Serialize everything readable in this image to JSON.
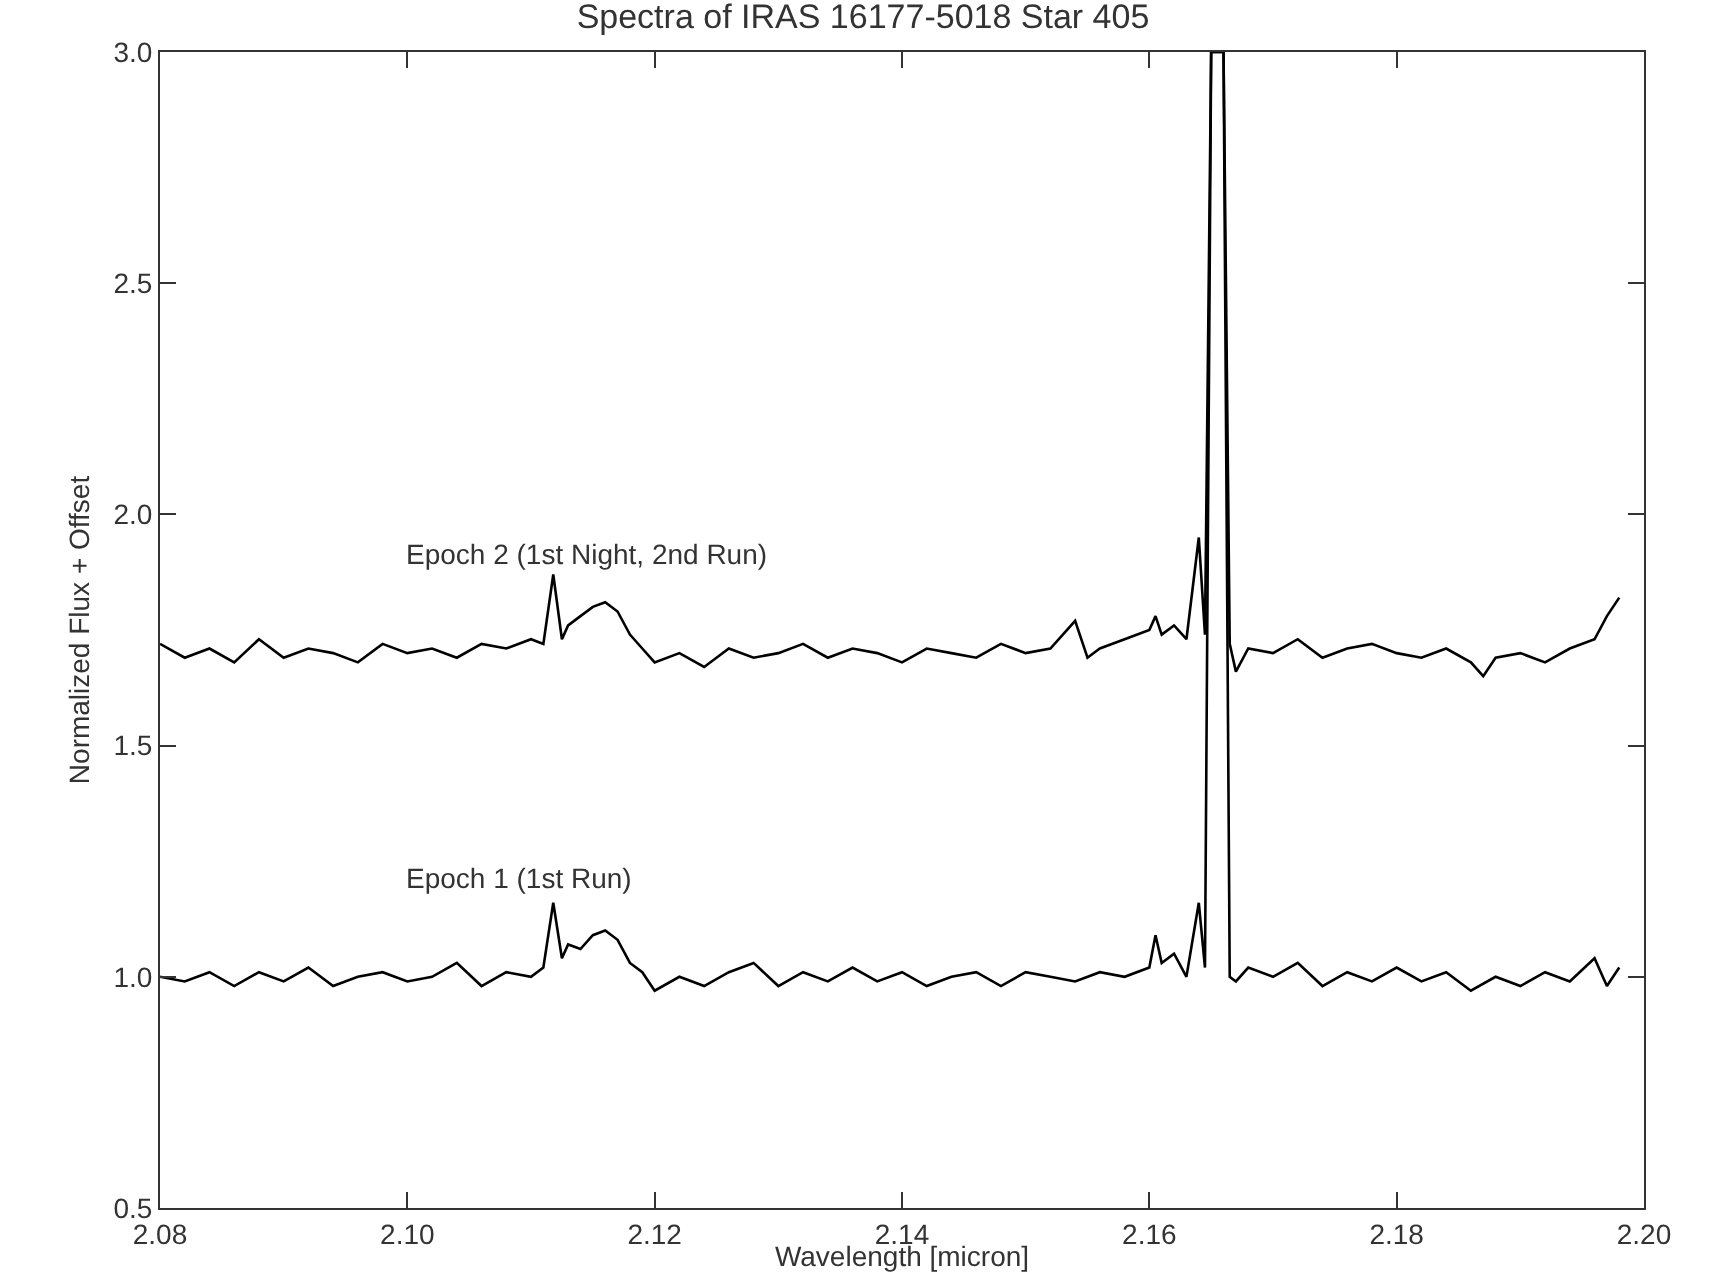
{
  "chart_data": {
    "type": "line",
    "title": "Spectra of IRAS 16177-5018 Star 405",
    "xlabel": "Wavelength [micron]",
    "ylabel": "Normalized Flux + Offset",
    "xlim": [
      2.08,
      2.2
    ],
    "ylim": [
      0.5,
      3.0
    ],
    "xticks": [
      2.08,
      {
        "value": 2.1,
        "label": "2.10"
      },
      2.12,
      2.14,
      2.16,
      2.18,
      {
        "value": 2.2,
        "label": "2.20"
      }
    ],
    "yticks": [
      0.5,
      {
        "value": 1,
        "label": "1.0"
      },
      1.5,
      {
        "value": 2,
        "label": "2.0"
      },
      2.5,
      {
        "value": 3,
        "label": "3.0"
      }
    ],
    "grid": false,
    "legend": false,
    "marker": "none",
    "line_style": "solid",
    "series": [
      {
        "name": "Epoch 1 (1st Run)",
        "color": "#000000",
        "x": [
          2.08,
          2.082,
          2.084,
          2.086,
          2.088,
          2.09,
          2.092,
          2.094,
          2.096,
          2.098,
          2.1,
          2.102,
          2.104,
          2.106,
          2.108,
          2.11,
          2.111,
          2.1118,
          2.1125,
          2.113,
          2.114,
          2.115,
          2.116,
          2.117,
          2.118,
          2.119,
          2.12,
          2.122,
          2.124,
          2.126,
          2.128,
          2.13,
          2.132,
          2.134,
          2.136,
          2.138,
          2.14,
          2.142,
          2.144,
          2.146,
          2.148,
          2.15,
          2.152,
          2.154,
          2.156,
          2.158,
          2.16,
          2.1605,
          2.161,
          2.162,
          2.163,
          2.164,
          2.1645,
          2.165,
          2.1655,
          2.166,
          2.1665,
          2.167,
          2.168,
          2.17,
          2.172,
          2.174,
          2.176,
          2.178,
          2.18,
          2.182,
          2.184,
          2.186,
          2.188,
          2.19,
          2.192,
          2.194,
          2.196,
          2.197,
          2.198
        ],
        "values": [
          1.0,
          0.99,
          1.01,
          0.98,
          1.01,
          0.99,
          1.02,
          0.98,
          1.0,
          1.01,
          0.99,
          1.0,
          1.03,
          0.98,
          1.01,
          1.0,
          1.02,
          1.16,
          1.04,
          1.07,
          1.06,
          1.09,
          1.1,
          1.08,
          1.03,
          1.01,
          0.97,
          1.0,
          0.98,
          1.01,
          1.03,
          0.98,
          1.01,
          0.99,
          1.02,
          0.99,
          1.01,
          0.98,
          1.0,
          1.01,
          0.98,
          1.01,
          1.0,
          0.99,
          1.01,
          1.0,
          1.02,
          1.09,
          1.03,
          1.05,
          1.0,
          1.16,
          1.02,
          3.0,
          3.0,
          3.0,
          1.0,
          0.99,
          1.02,
          1.0,
          1.03,
          0.98,
          1.01,
          0.99,
          1.02,
          0.99,
          1.01,
          0.97,
          1.0,
          0.98,
          1.01,
          0.99,
          1.04,
          0.98,
          1.02
        ]
      },
      {
        "name": "Epoch 2 (1st Night, 2nd Run)",
        "color": "#000000",
        "x": [
          2.08,
          2.082,
          2.084,
          2.086,
          2.088,
          2.09,
          2.092,
          2.094,
          2.096,
          2.098,
          2.1,
          2.102,
          2.104,
          2.106,
          2.108,
          2.11,
          2.111,
          2.1118,
          2.1125,
          2.113,
          2.114,
          2.115,
          2.116,
          2.117,
          2.118,
          2.119,
          2.12,
          2.122,
          2.124,
          2.126,
          2.128,
          2.13,
          2.132,
          2.134,
          2.136,
          2.138,
          2.14,
          2.142,
          2.144,
          2.146,
          2.148,
          2.15,
          2.152,
          2.154,
          2.155,
          2.156,
          2.158,
          2.16,
          2.1605,
          2.161,
          2.162,
          2.163,
          2.164,
          2.1645,
          2.165,
          2.1655,
          2.166,
          2.1665,
          2.167,
          2.168,
          2.17,
          2.172,
          2.174,
          2.176,
          2.178,
          2.18,
          2.182,
          2.184,
          2.186,
          2.187,
          2.188,
          2.19,
          2.192,
          2.194,
          2.196,
          2.197,
          2.198
        ],
        "values": [
          1.72,
          1.69,
          1.71,
          1.68,
          1.73,
          1.69,
          1.71,
          1.7,
          1.68,
          1.72,
          1.7,
          1.71,
          1.69,
          1.72,
          1.71,
          1.73,
          1.72,
          1.87,
          1.73,
          1.76,
          1.78,
          1.8,
          1.81,
          1.79,
          1.74,
          1.71,
          1.68,
          1.7,
          1.67,
          1.71,
          1.69,
          1.7,
          1.72,
          1.69,
          1.71,
          1.7,
          1.68,
          1.71,
          1.7,
          1.69,
          1.72,
          1.7,
          1.71,
          1.77,
          1.69,
          1.71,
          1.73,
          1.75,
          1.78,
          1.74,
          1.76,
          1.73,
          1.95,
          1.74,
          3.0,
          3.0,
          3.0,
          1.72,
          1.66,
          1.71,
          1.7,
          1.73,
          1.69,
          1.71,
          1.72,
          1.7,
          1.69,
          1.71,
          1.68,
          1.65,
          1.69,
          1.7,
          1.68,
          1.71,
          1.73,
          1.78,
          1.82
        ]
      }
    ]
  }
}
